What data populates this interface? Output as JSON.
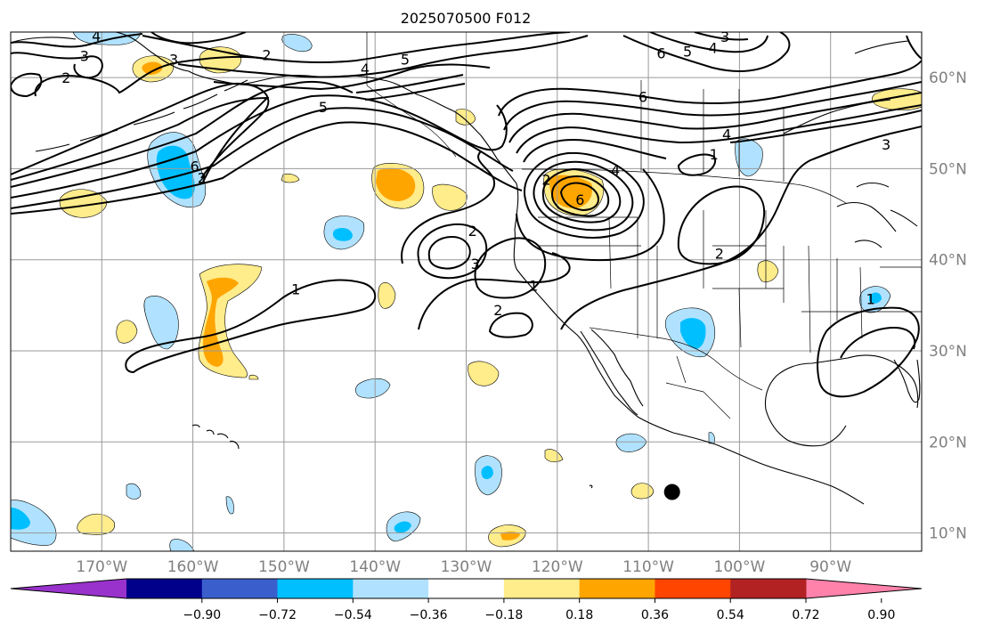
{
  "title": "2025070500 F012",
  "map": {
    "extent": {
      "lon_min": -180,
      "lon_max": -80,
      "lat_min": 8,
      "lat_max": 65
    },
    "latitudes": [
      {
        "value": 10,
        "label": "10°N"
      },
      {
        "value": 20,
        "label": "20°N"
      },
      {
        "value": 30,
        "label": "30°N"
      },
      {
        "value": 40,
        "label": "40°N"
      },
      {
        "value": 50,
        "label": "50°N"
      },
      {
        "value": 60,
        "label": "60°N"
      }
    ],
    "longitudes": [
      {
        "value": -170,
        "label": "170°W"
      },
      {
        "value": -160,
        "label": "160°W"
      },
      {
        "value": -150,
        "label": "150°W"
      },
      {
        "value": -140,
        "label": "140°W"
      },
      {
        "value": -130,
        "label": "130°W"
      },
      {
        "value": -120,
        "label": "120°W"
      },
      {
        "value": -110,
        "label": "110°W"
      },
      {
        "value": -100,
        "label": "100°W"
      },
      {
        "value": -90,
        "label": "90°W"
      }
    ],
    "grid": true,
    "marker": {
      "lon": -107.4,
      "lat": 14.5,
      "color": "#000000"
    }
  },
  "contours": {
    "line_color": "#000000",
    "labels": [
      {
        "text": "4",
        "lon": -170.6,
        "lat": 64.6
      },
      {
        "text": "3",
        "lon": -171.9,
        "lat": 62.4
      },
      {
        "text": "2",
        "lon": -173.9,
        "lat": 60.0
      },
      {
        "text": "3",
        "lon": -162.1,
        "lat": 62.0
      },
      {
        "text": "2",
        "lon": -151.9,
        "lat": 62.5
      },
      {
        "text": "4",
        "lon": -141.1,
        "lat": 61.0
      },
      {
        "text": "5",
        "lon": -136.7,
        "lat": 62.0
      },
      {
        "text": "5",
        "lon": -145.7,
        "lat": 56.8
      },
      {
        "text": "6",
        "lon": -159.8,
        "lat": 50.3
      },
      {
        "text": "2",
        "lon": -159.0,
        "lat": 49.0
      },
      {
        "text": "6",
        "lon": -108.6,
        "lat": 62.7
      },
      {
        "text": "5",
        "lon": -105.7,
        "lat": 62.9
      },
      {
        "text": "4",
        "lon": -102.9,
        "lat": 63.3
      },
      {
        "text": "3",
        "lon": -101.6,
        "lat": 64.5
      },
      {
        "text": "6",
        "lon": -110.6,
        "lat": 57.9
      },
      {
        "text": "4",
        "lon": -101.4,
        "lat": 53.8
      },
      {
        "text": "3",
        "lon": -83.9,
        "lat": 52.7
      },
      {
        "text": "1",
        "lon": -102.8,
        "lat": 51.6
      },
      {
        "text": "4",
        "lon": -113.6,
        "lat": 49.9
      },
      {
        "text": "2",
        "lon": -121.2,
        "lat": 48.8
      },
      {
        "text": "6",
        "lon": -117.5,
        "lat": 46.6
      },
      {
        "text": "2",
        "lon": -129.3,
        "lat": 43.2
      },
      {
        "text": "3",
        "lon": -129.0,
        "lat": 39.6
      },
      {
        "text": "1",
        "lon": -122.6,
        "lat": 37.2
      },
      {
        "text": "2",
        "lon": -126.5,
        "lat": 34.5
      },
      {
        "text": "2",
        "lon": -102.2,
        "lat": 40.7
      },
      {
        "text": "1",
        "lon": -148.7,
        "lat": 36.8
      },
      {
        "text": "1",
        "lon": -85.6,
        "lat": 35.7
      }
    ]
  },
  "shading": {
    "colors": {
      "neg5": "#9932cc",
      "neg4": "#00008b",
      "neg3": "#3a5fcd",
      "neg2": "#00bfff",
      "neg1": "#b0e2ff",
      "pos1": "#ffec8b",
      "pos2": "#ffa500",
      "pos3": "#ff4500",
      "pos4": "#b22222",
      "pos5": "#ff82ab"
    }
  },
  "colorbar": {
    "extend": "both",
    "boundaries": [
      "−0.90",
      "−0.72",
      "−0.54",
      "−0.36",
      "−0.18",
      "0.18",
      "0.36",
      "0.54",
      "0.72",
      "0.90"
    ],
    "segment_colors": [
      "#9932cc",
      "#00008b",
      "#3a5fcd",
      "#00bfff",
      "#b0e2ff",
      "#ffffff",
      "#ffec8b",
      "#ffa500",
      "#ff4500",
      "#b22222",
      "#ff82ab"
    ]
  }
}
